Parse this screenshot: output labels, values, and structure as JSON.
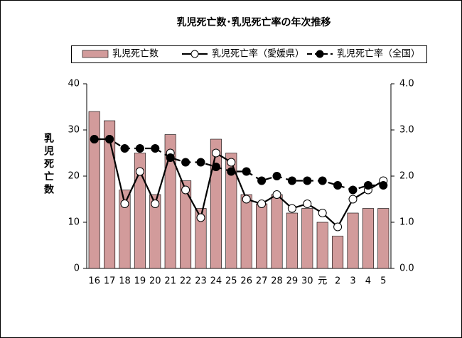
{
  "chart_data": {
    "type": "bar",
    "title": "乳児死亡数･乳児死亡率の年次推移",
    "ylabel": "乳児死亡数",
    "categories": [
      "16",
      "17",
      "18",
      "19",
      "20",
      "21",
      "22",
      "23",
      "24",
      "25",
      "26",
      "27",
      "28",
      "29",
      "30",
      "元",
      "2",
      "3",
      "4",
      "5"
    ],
    "series": [
      {
        "name": "乳児死亡数",
        "type": "bar",
        "color": "#d29b9b",
        "values": [
          34,
          32,
          17,
          25,
          16,
          29,
          19,
          13,
          28,
          25,
          16,
          14,
          16,
          12,
          13,
          10,
          7,
          12,
          13,
          13
        ]
      },
      {
        "name": "乳児死亡率（愛媛県）",
        "type": "line",
        "axis": "y2",
        "color": "#000000",
        "marker_fill": "#ffffff",
        "dashed": false,
        "values": [
          2.8,
          2.8,
          1.4,
          2.1,
          1.4,
          2.5,
          1.7,
          1.1,
          2.5,
          2.3,
          1.5,
          1.4,
          1.6,
          1.3,
          1.4,
          1.2,
          0.9,
          1.5,
          1.7,
          1.9
        ]
      },
      {
        "name": "乳児死亡率（全国）",
        "type": "line",
        "axis": "y2",
        "color": "#000000",
        "marker_fill": "#000000",
        "dashed": true,
        "values": [
          2.8,
          2.8,
          2.6,
          2.6,
          2.6,
          2.4,
          2.3,
          2.3,
          2.2,
          2.1,
          2.1,
          1.9,
          2.0,
          1.9,
          1.9,
          1.9,
          1.8,
          1.7,
          1.8,
          1.8
        ]
      }
    ],
    "ylim": [
      0,
      40
    ],
    "yticks": [
      0,
      10,
      20,
      30,
      40
    ],
    "y2lim": [
      0,
      4
    ],
    "y2ticks": [
      {
        "value": 0,
        "label": "0.0"
      },
      {
        "value": 1,
        "label": "1.0"
      },
      {
        "value": 2,
        "label": "2.0"
      },
      {
        "value": 3,
        "label": "3.0"
      },
      {
        "value": 4,
        "label": "4.0"
      }
    ],
    "grid": false,
    "legend": "top"
  }
}
